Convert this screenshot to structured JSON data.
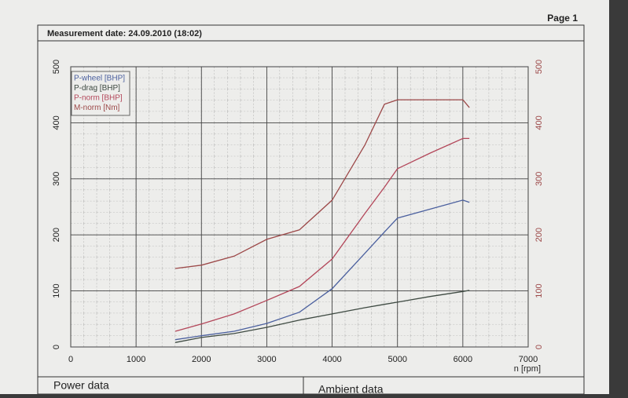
{
  "page": {
    "page_number": "Page 1",
    "measurement": "Measurement date: 24.09.2010 (18:02)",
    "sections": [
      "Power data",
      "Ambient data"
    ]
  },
  "chart_data": {
    "type": "line",
    "xlabel": "n [rpm]",
    "x": [
      1600,
      2000,
      2500,
      3000,
      3500,
      4000,
      4500,
      4800,
      5000,
      5500,
      6000,
      6100
    ],
    "series": [
      {
        "name": "P-wheel [BHP]",
        "color": "#4a5f9e",
        "values": [
          13,
          20,
          28,
          42,
          62,
          104,
          167,
          205,
          230,
          246,
          262,
          258
        ]
      },
      {
        "name": "P-drag [BHP]",
        "color": "#3e4a42",
        "values": [
          8,
          17,
          24,
          35,
          48,
          59,
          70,
          76,
          80,
          90,
          99,
          101
        ]
      },
      {
        "name": "P-norm [BHP]",
        "color": "#b3475a",
        "values": [
          28,
          41,
          59,
          83,
          108,
          157,
          238,
          285,
          318,
          346,
          372,
          372
        ]
      },
      {
        "name": "M-norm [Nm]",
        "color": "#9c4848",
        "axis": "y2",
        "values": [
          140,
          146,
          162,
          192,
          209,
          262,
          360,
          433,
          441,
          441,
          441,
          427
        ]
      }
    ],
    "xlim": [
      0,
      7000
    ],
    "xticks": [
      0,
      1000,
      2000,
      3000,
      4000,
      5000,
      6000,
      7000
    ],
    "ylim": [
      0,
      500
    ],
    "yticks": [
      0,
      100,
      200,
      300,
      400,
      500
    ],
    "y2lim": [
      0,
      500
    ],
    "y2ticks": [
      0,
      100,
      200,
      300,
      400,
      500
    ],
    "grid": true,
    "legend": "upper left"
  }
}
